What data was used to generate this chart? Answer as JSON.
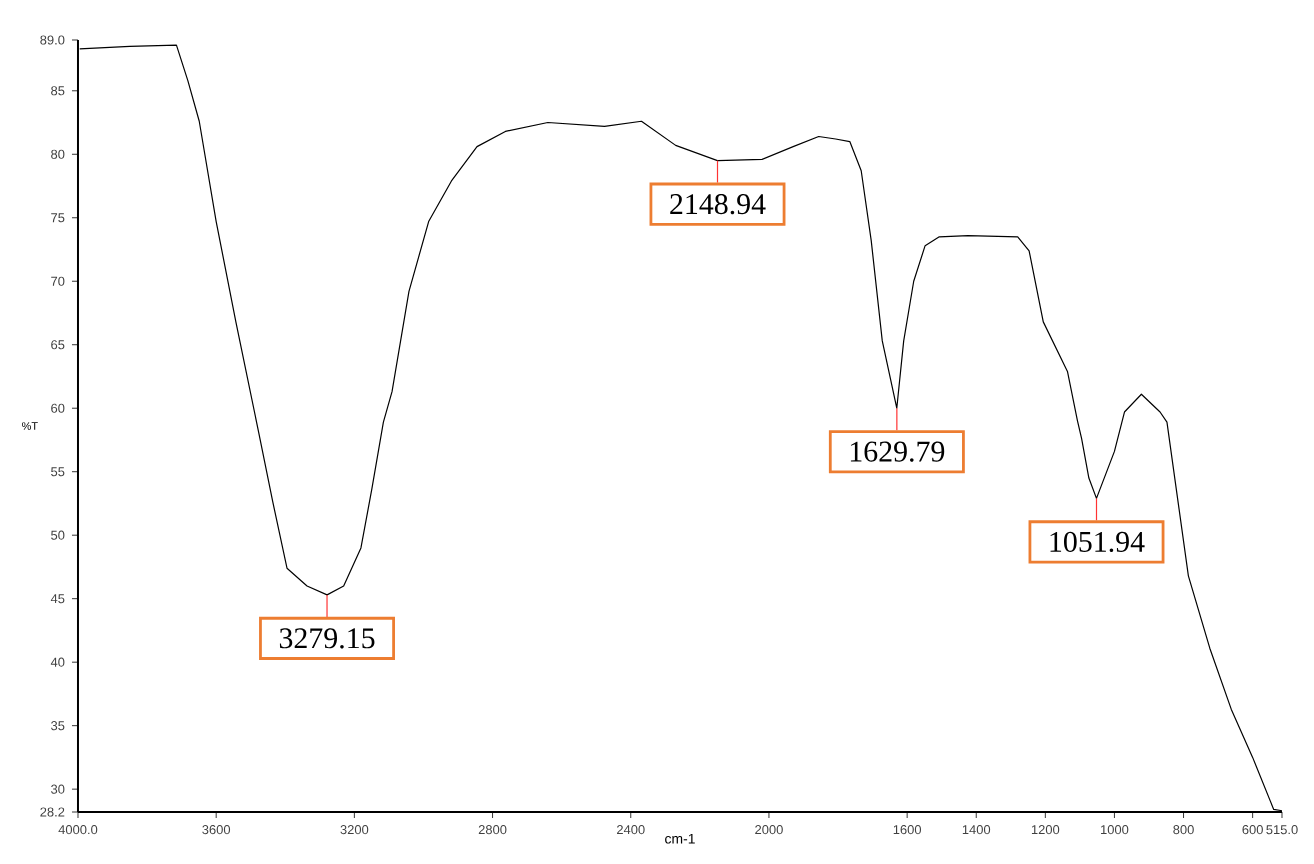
{
  "chart_data": {
    "type": "line",
    "xlabel": "cm-1",
    "ylabel": "%T",
    "xlim": [
      4000,
      515
    ],
    "ylim": [
      28.2,
      89.0
    ],
    "xticks": [
      {
        "value": 4000,
        "label": "4000.0"
      },
      3600,
      3200,
      2800,
      2400,
      2000,
      1600,
      1400,
      1200,
      1000,
      800,
      600,
      {
        "value": 515,
        "label": "515.0"
      }
    ],
    "yticks": [
      {
        "value": 28.2,
        "label": "28.2"
      },
      30,
      35,
      40,
      45,
      50,
      55,
      60,
      65,
      70,
      75,
      80,
      85,
      {
        "value": 89.0,
        "label": "89.0"
      }
    ],
    "series": [
      {
        "color": "#000000",
        "x": [
          3995,
          3850,
          3715,
          3682,
          3649,
          3600,
          3543,
          3477,
          3436,
          3395,
          3337,
          3279,
          3231,
          3181,
          3149,
          3116,
          3091,
          3042,
          2985,
          2919,
          2845,
          2763,
          2640,
          2476,
          2369,
          2270,
          2149,
          2020,
          1930,
          1856,
          1807,
          1766,
          1733,
          1704,
          1672,
          1630,
          1610,
          1581,
          1548,
          1507,
          1424,
          1280,
          1247,
          1206,
          1136,
          1107,
          1095,
          1074,
          1052,
          1000,
          971,
          922,
          868,
          848,
          786,
          724,
          662,
          600,
          539,
          515
        ],
        "values": [
          88.3,
          88.5,
          88.6,
          85.8,
          82.6,
          74.7,
          66.8,
          58.1,
          52.6,
          47.4,
          46.0,
          45.3,
          46.0,
          49.0,
          53.7,
          58.9,
          61.3,
          69.2,
          74.7,
          77.9,
          80.6,
          81.8,
          82.5,
          82.2,
          82.6,
          80.7,
          79.5,
          79.6,
          80.6,
          81.4,
          81.2,
          81.0,
          78.7,
          73.2,
          65.3,
          60.0,
          65.3,
          70.0,
          72.8,
          73.5,
          73.6,
          73.5,
          72.4,
          66.8,
          62.9,
          59.0,
          57.6,
          54.5,
          52.9,
          56.6,
          59.7,
          61.1,
          59.7,
          58.9,
          46.8,
          41.1,
          36.3,
          32.5,
          28.4,
          28.3
        ]
      }
    ],
    "annotations": [
      {
        "text": "3279.15",
        "x": 3279.15,
        "y": 45.3
      },
      {
        "text": "2148.94",
        "x": 2148.94,
        "y": 79.5
      },
      {
        "text": "1629.79",
        "x": 1629.79,
        "y": 60.0
      },
      {
        "text": "1051.94",
        "x": 1051.94,
        "y": 52.9
      }
    ]
  }
}
